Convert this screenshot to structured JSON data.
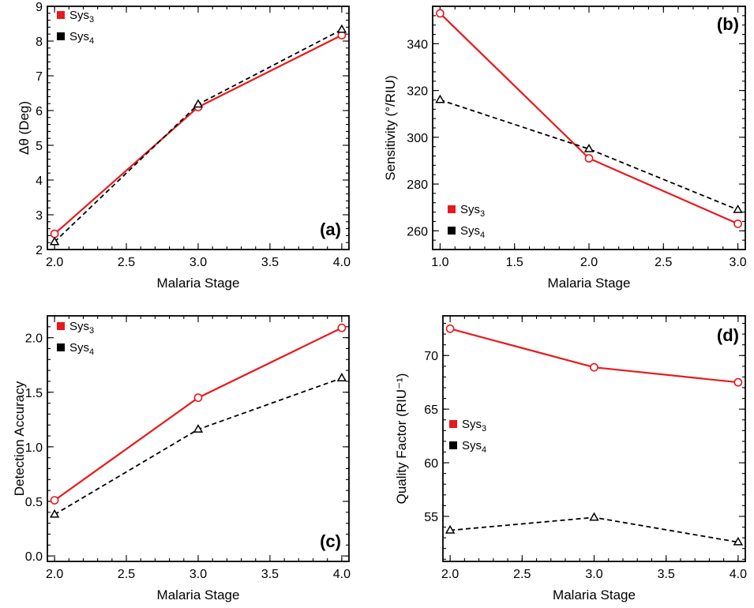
{
  "chart_data": [
    {
      "panel": "(a)",
      "type": "line",
      "xlabel": "Malaria Stage",
      "ylabel": "Δθ (Deg)",
      "xlim": [
        1.95,
        4.05
      ],
      "ylim": [
        2,
        9
      ],
      "xticks": [
        2.0,
        2.5,
        3.0,
        3.5,
        4.0
      ],
      "xtick_labels": [
        "2.0",
        "2.5",
        "3.0",
        "3.5",
        "4.0"
      ],
      "yticks": [
        2,
        3,
        4,
        5,
        6,
        7,
        8,
        9
      ],
      "ytick_labels": [
        "2",
        "3",
        "4",
        "5",
        "6",
        "7",
        "8",
        "9"
      ],
      "minor_y_step": 0.2,
      "legend_position": "top-left",
      "series": [
        {
          "name": "Sys3",
          "name_main": "Sys",
          "name_sub": "3",
          "color": "#e8191d",
          "dashed": false,
          "marker": "circle",
          "x": [
            2,
            3,
            4
          ],
          "values": [
            2.45,
            6.1,
            8.17
          ]
        },
        {
          "name": "Sys4",
          "name_main": "Sys",
          "name_sub": "4",
          "color": "#000000",
          "dashed": true,
          "marker": "triangle",
          "x": [
            2,
            3,
            4
          ],
          "values": [
            2.22,
            6.18,
            8.33
          ]
        }
      ]
    },
    {
      "panel": "(b)",
      "type": "line",
      "xlabel": "Malaria Stage",
      "ylabel": "Sensitivity (°/RIU)",
      "xlim": [
        0.95,
        3.05
      ],
      "ylim": [
        252,
        356
      ],
      "xticks": [
        1.0,
        1.5,
        2.0,
        2.5,
        3.0
      ],
      "xtick_labels": [
        "1.0",
        "1.5",
        "2.0",
        "2.5",
        "3.0"
      ],
      "yticks": [
        260,
        280,
        300,
        320,
        340
      ],
      "ytick_labels": [
        "260",
        "280",
        "300",
        "320",
        "340"
      ],
      "minor_y_step": 4,
      "legend_position": "bottom-left",
      "series": [
        {
          "name": "Sys3",
          "name_main": "Sys",
          "name_sub": "3",
          "color": "#e8191d",
          "dashed": false,
          "marker": "circle",
          "x": [
            1,
            2,
            3
          ],
          "values": [
            353,
            291,
            263
          ]
        },
        {
          "name": "Sys4",
          "name_main": "Sys",
          "name_sub": "4",
          "color": "#000000",
          "dashed": true,
          "marker": "triangle",
          "x": [
            1,
            2,
            3
          ],
          "values": [
            316,
            295,
            269
          ]
        }
      ]
    },
    {
      "panel": "(c)",
      "type": "line",
      "xlabel": "Malaria Stage",
      "ylabel": "Detection Accuracy",
      "xlim": [
        1.95,
        4.05
      ],
      "ylim": [
        -0.05,
        2.2
      ],
      "xticks": [
        2.0,
        2.5,
        3.0,
        3.5,
        4.0
      ],
      "xtick_labels": [
        "2.0",
        "2.5",
        "3.0",
        "3.5",
        "4.0"
      ],
      "yticks": [
        0.0,
        0.5,
        1.0,
        1.5,
        2.0
      ],
      "ytick_labels": [
        "0.0",
        "0.5",
        "1.0",
        "1.5",
        "2.0"
      ],
      "minor_y_step": 0.1,
      "legend_position": "top-left",
      "series": [
        {
          "name": "Sys3",
          "name_main": "Sys",
          "name_sub": "3",
          "color": "#e8191d",
          "dashed": false,
          "marker": "circle",
          "x": [
            2,
            3,
            4
          ],
          "values": [
            0.51,
            1.45,
            2.09
          ]
        },
        {
          "name": "Sys4",
          "name_main": "Sys",
          "name_sub": "4",
          "color": "#000000",
          "dashed": true,
          "marker": "triangle",
          "x": [
            2,
            3,
            4
          ],
          "values": [
            0.38,
            1.16,
            1.63
          ]
        }
      ]
    },
    {
      "panel": "(d)",
      "type": "line",
      "xlabel": "Malaria Stage",
      "ylabel": "Quality Factor (RIU⁻¹)",
      "xlim": [
        1.95,
        4.05
      ],
      "ylim": [
        50.8,
        73.7
      ],
      "xticks": [
        2.0,
        2.5,
        3.0,
        3.5,
        4.0
      ],
      "xtick_labels": [
        "2.0",
        "2.5",
        "3.0",
        "3.5",
        "4.0"
      ],
      "yticks": [
        55,
        60,
        65,
        70
      ],
      "ytick_labels": [
        "55",
        "60",
        "65",
        "70"
      ],
      "minor_y_step": 1,
      "legend_position": "middle-left",
      "series": [
        {
          "name": "Sys3",
          "name_main": "Sys",
          "name_sub": "3",
          "color": "#e8191d",
          "dashed": false,
          "marker": "circle",
          "x": [
            2,
            3,
            4
          ],
          "values": [
            72.5,
            68.9,
            67.5
          ]
        },
        {
          "name": "Sys4",
          "name_main": "Sys",
          "name_sub": "4",
          "color": "#000000",
          "dashed": true,
          "marker": "triangle",
          "x": [
            2,
            3,
            4
          ],
          "values": [
            53.7,
            54.9,
            52.6
          ]
        }
      ]
    }
  ]
}
